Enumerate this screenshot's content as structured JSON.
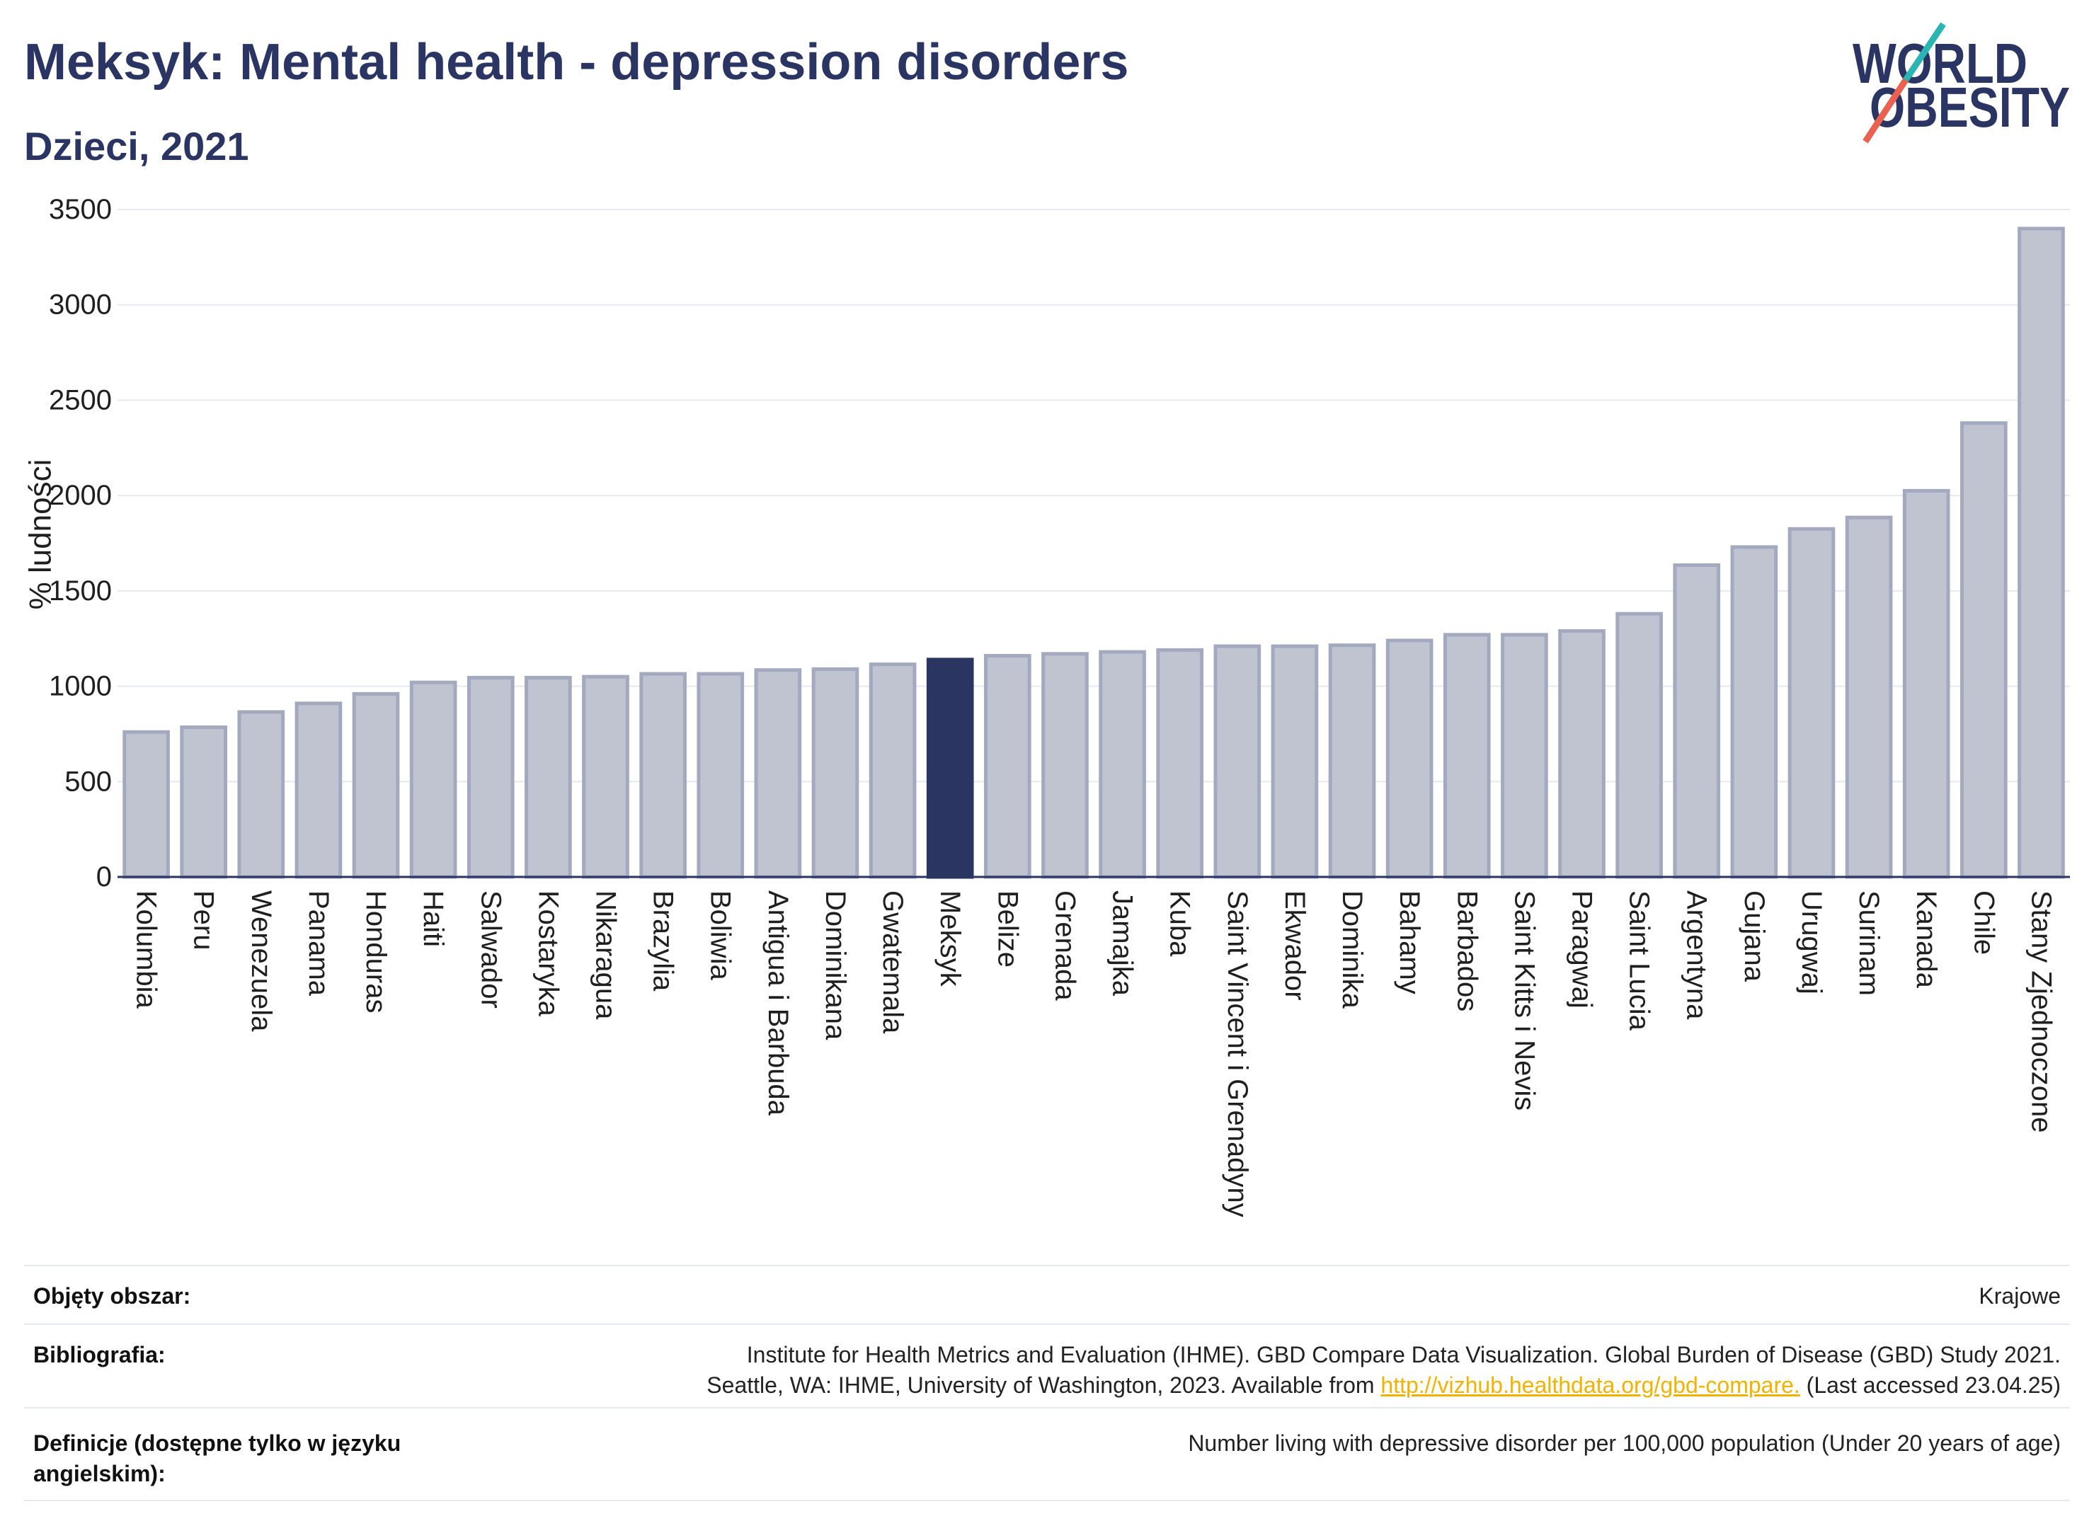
{
  "chart_data": {
    "type": "bar",
    "title": "Meksyk: Mental health - depression disorders",
    "subtitle": "Dzieci, 2021",
    "xlabel": "",
    "ylabel": "% ludności",
    "ylim": [
      0,
      3500
    ],
    "yticks": [
      0,
      500,
      1000,
      1500,
      2000,
      2500,
      3000,
      3500
    ],
    "grid": true,
    "legend": "none",
    "highlight_index": 14,
    "categories": [
      "Kolumbia",
      "Peru",
      "Wenezuela",
      "Panama",
      "Honduras",
      "Haiti",
      "Salwador",
      "Kostaryka",
      "Nikaragua",
      "Brazylia",
      "Boliwia",
      "Antigua i Barbuda",
      "Dominikana",
      "Gwatemala",
      "Meksyk",
      "Belize",
      "Grenada",
      "Jamajka",
      "Kuba",
      "Saint Vincent i Grenadyny",
      "Ekwador",
      "Dominika",
      "Bahamy",
      "Barbados",
      "Saint Kitts i Nevis",
      "Paragwaj",
      "Saint Lucia",
      "Argentyna",
      "Gujana",
      "Urugwaj",
      "Surinam",
      "Kanada",
      "Chile",
      "Stany Zjednoczone"
    ],
    "values": [
      760,
      785,
      865,
      910,
      960,
      1020,
      1045,
      1045,
      1050,
      1065,
      1065,
      1085,
      1090,
      1115,
      1140,
      1160,
      1170,
      1180,
      1190,
      1210,
      1210,
      1215,
      1240,
      1270,
      1270,
      1290,
      1380,
      1635,
      1730,
      1825,
      1885,
      2025,
      2380,
      3400
    ]
  },
  "logo": {
    "line1": "WORLD",
    "line2": "OBESITY"
  },
  "footer": {
    "coverage": {
      "label": "Objęty obszar:",
      "value": "Krajowe"
    },
    "bibliography": {
      "label": "Bibliografia:",
      "line1": "Institute for Health Metrics and Evaluation (IHME). GBD Compare Data Visualization. Global Burden of Disease (GBD) Study 2021.",
      "line2_prefix": "Seattle, WA: IHME, University of Washington, 2023. Available from",
      "link": "http://vizhub.healthdata.org/gbd-compare.",
      "line2_suffix": "(Last accessed 23.04.25)"
    },
    "definitions": {
      "label": "Definicje (dostępne tylko w języku angielskim):",
      "value": "Number living with depressive disorder per 100,000 population (Under 20 years of age)"
    }
  },
  "colors": {
    "title": "#2a3563",
    "bar_fill": "#c0c3d0",
    "bar_stroke": "#a3a9be",
    "highlight": "#2b3562",
    "axis": "#2a3563",
    "grid": "#e7e9f0",
    "link": "#f2b300",
    "logo_teal": "#2bb5b2",
    "logo_coral": "#ea6150"
  }
}
